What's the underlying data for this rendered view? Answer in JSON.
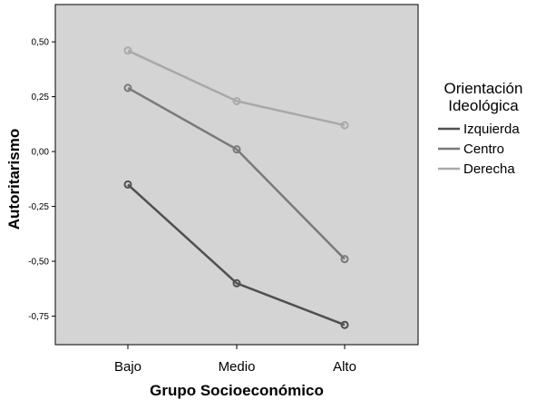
{
  "chart_data": {
    "type": "line",
    "categories": [
      "Bajo",
      "Medio",
      "Alto"
    ],
    "series": [
      {
        "name": "Izquierda",
        "values": [
          -0.15,
          -0.6,
          -0.79
        ],
        "color": "#505050"
      },
      {
        "name": "Centro",
        "values": [
          0.29,
          0.01,
          -0.49
        ],
        "color": "#7a7a7a"
      },
      {
        "name": "Derecha",
        "values": [
          0.46,
          0.23,
          0.12
        ],
        "color": "#a9a9a9"
      }
    ],
    "xlabel": "Grupo Socioeconómico",
    "ylabel": "Autoritarismo",
    "yticks": [
      0.5,
      0.25,
      0.0,
      -0.25,
      -0.5,
      -0.75
    ],
    "ytick_labels": [
      "0,50",
      "0,25",
      "0,00",
      "-0,25",
      "-0,50",
      "-0,75"
    ],
    "ylim": [
      -0.88,
      0.67
    ],
    "legend_title": [
      "Orientación",
      "Ideológica"
    ],
    "legend_position": "right",
    "grid": false,
    "plot_background": "#d4d4d4"
  }
}
